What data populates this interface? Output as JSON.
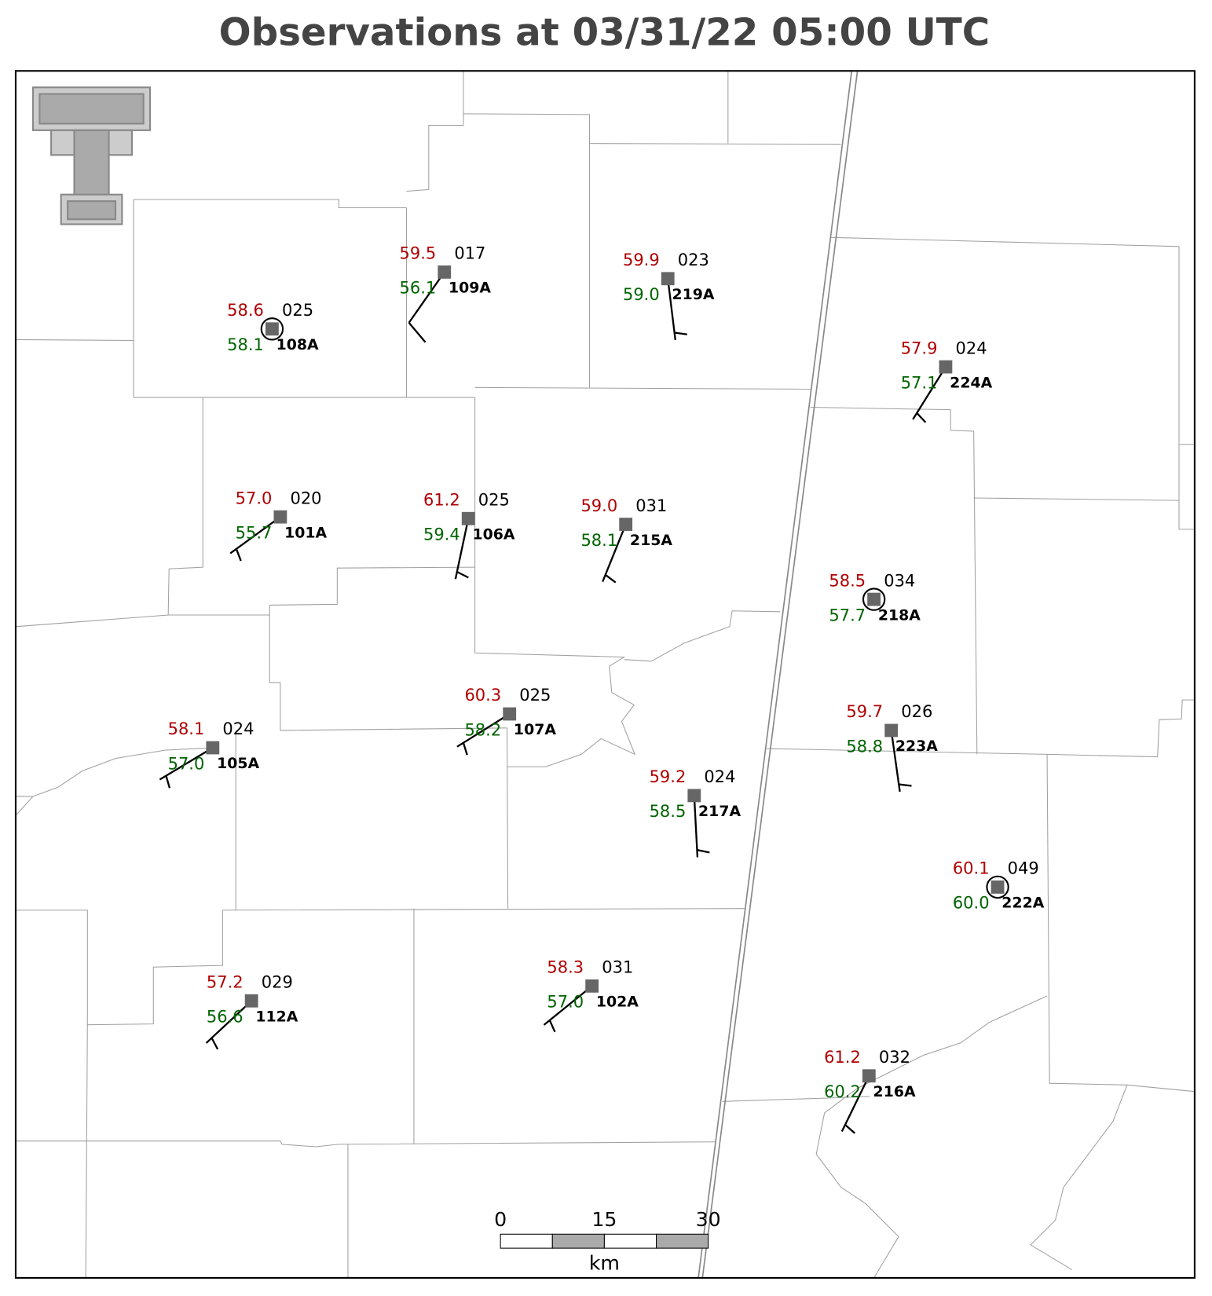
{
  "title": "Observations at 03/31/22 05:00 UTC",
  "stations": [
    {
      "id": "108A",
      "temp": "58.6",
      "dewpoint": "58.1",
      "pressure": "025",
      "wind_dir": 0,
      "wind_speed": 0
    },
    {
      "id": "109A",
      "temp": "59.5",
      "dewpoint": "56.1",
      "pressure": "017",
      "wind_dir": 215,
      "wind_speed": 10
    },
    {
      "id": "219A",
      "temp": "59.9",
      "dewpoint": "59.0",
      "pressure": "023",
      "wind_dir": 173,
      "wind_speed": 5
    },
    {
      "id": "224A",
      "temp": "57.9",
      "dewpoint": "57.1",
      "pressure": "024",
      "wind_dir": 212,
      "wind_speed": 5
    },
    {
      "id": "101A",
      "temp": "57.0",
      "dewpoint": "55.7",
      "pressure": "020",
      "wind_dir": 234,
      "wind_speed": 5
    },
    {
      "id": "106A",
      "temp": "61.2",
      "dewpoint": "59.4",
      "pressure": "025",
      "wind_dir": 192,
      "wind_speed": 5
    },
    {
      "id": "215A",
      "temp": "59.0",
      "dewpoint": "58.1",
      "pressure": "031",
      "wind_dir": 202,
      "wind_speed": 5
    },
    {
      "id": "218A",
      "temp": "58.5",
      "dewpoint": "57.7",
      "pressure": "034",
      "wind_dir": 0,
      "wind_speed": 0
    },
    {
      "id": "107A",
      "temp": "60.3",
      "dewpoint": "58.2",
      "pressure": "025",
      "wind_dir": 238,
      "wind_speed": 5
    },
    {
      "id": "105A",
      "temp": "58.1",
      "dewpoint": "57.0",
      "pressure": "024",
      "wind_dir": 239,
      "wind_speed": 5
    },
    {
      "id": "223A",
      "temp": "59.7",
      "dewpoint": "58.8",
      "pressure": "026",
      "wind_dir": 172,
      "wind_speed": 5
    },
    {
      "id": "217A",
      "temp": "59.2",
      "dewpoint": "58.5",
      "pressure": "024",
      "wind_dir": 177,
      "wind_speed": 5
    },
    {
      "id": "222A",
      "temp": "60.1",
      "dewpoint": "60.0",
      "pressure": "049",
      "wind_dir": 0,
      "wind_speed": 0
    },
    {
      "id": "112A",
      "temp": "57.2",
      "dewpoint": "56.6",
      "pressure": "029",
      "wind_dir": 227,
      "wind_speed": 5
    },
    {
      "id": "102A",
      "temp": "58.3",
      "dewpoint": "57.0",
      "pressure": "031",
      "wind_dir": 231,
      "wind_speed": 5
    },
    {
      "id": "216A",
      "temp": "61.2",
      "dewpoint": "60.2",
      "pressure": "032",
      "wind_dir": 206,
      "wind_speed": 5
    }
  ],
  "scale_bar": {
    "labels": [
      "0",
      "15",
      "30"
    ],
    "unit": "km"
  }
}
